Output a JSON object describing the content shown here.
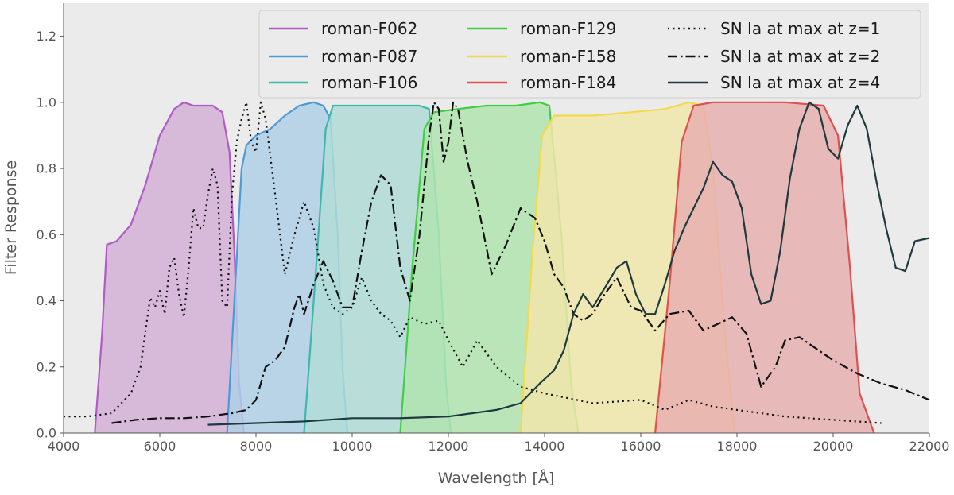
{
  "chart_data": {
    "type": "area",
    "xlabel": "Wavelength [Å]",
    "ylabel": "Filter Response",
    "xlim": [
      4000,
      22000
    ],
    "ylim": [
      0,
      1.3
    ],
    "xticks": [
      4000,
      6000,
      8000,
      10000,
      12000,
      14000,
      16000,
      18000,
      20000,
      22000
    ],
    "yticks": [
      0.0,
      0.2,
      0.4,
      0.6,
      0.8,
      1.0,
      1.2
    ],
    "ytick_labels": [
      "0.0",
      "0.2",
      "0.4",
      "0.6",
      "0.8",
      "1.0",
      "1.2"
    ],
    "grid": false,
    "background": "#ebebeb",
    "legend_position": "top-right",
    "filters": [
      {
        "name": "roman-F062",
        "color": "#b05cc4",
        "fill": "#d4b0d6",
        "x": [
          4650,
          4800,
          4900,
          5100,
          5400,
          5700,
          6000,
          6300,
          6500,
          6700,
          6900,
          7100,
          7300,
          7450,
          7550,
          7650,
          7750
        ],
        "y": [
          0,
          0.3,
          0.57,
          0.58,
          0.63,
          0.75,
          0.9,
          0.98,
          1.0,
          0.99,
          0.99,
          0.99,
          0.97,
          0.85,
          0.55,
          0.15,
          0
        ]
      },
      {
        "name": "roman-F087",
        "color": "#4d9bd6",
        "fill": "#b0cfe6",
        "x": [
          7400,
          7550,
          7700,
          7800,
          8000,
          8300,
          8600,
          8900,
          9200,
          9400,
          9550,
          9700,
          9800,
          9900
        ],
        "y": [
          0,
          0.4,
          0.8,
          0.87,
          0.9,
          0.92,
          0.96,
          0.99,
          1.0,
          0.99,
          0.95,
          0.6,
          0.2,
          0
        ]
      },
      {
        "name": "roman-F106",
        "color": "#3db8aa",
        "fill": "#b0dcd6",
        "x": [
          9000,
          9250,
          9450,
          9600,
          10000,
          10500,
          11000,
          11400,
          11600,
          11800,
          11950,
          12050
        ],
        "y": [
          0,
          0.5,
          0.92,
          0.99,
          0.99,
          0.99,
          0.99,
          0.99,
          0.98,
          0.6,
          0.15,
          0
        ]
      },
      {
        "name": "roman-F129",
        "color": "#44cc44",
        "fill": "#b0e4b0",
        "x": [
          11000,
          11250,
          11500,
          11700,
          12200,
          12800,
          13400,
          13900,
          14100,
          14350,
          14550,
          14700
        ],
        "y": [
          0,
          0.5,
          0.92,
          0.97,
          0.98,
          0.99,
          0.99,
          1.0,
          0.99,
          0.6,
          0.15,
          0
        ]
      },
      {
        "name": "roman-F158",
        "color": "#f2d94e",
        "fill": "#f0e6aa",
        "x": [
          13500,
          13750,
          13950,
          14200,
          15000,
          15800,
          16500,
          17000,
          17300,
          17500,
          17750,
          17950
        ],
        "y": [
          0,
          0.55,
          0.9,
          0.96,
          0.96,
          0.97,
          0.98,
          1.0,
          0.99,
          0.8,
          0.3,
          0
        ]
      },
      {
        "name": "roman-F184",
        "color": "#e05050",
        "fill": "#e8b0b0",
        "x": [
          16300,
          16600,
          16850,
          17100,
          17500,
          18200,
          19000,
          19800,
          20100,
          20350,
          20550,
          20850
        ],
        "y": [
          0,
          0.45,
          0.88,
          0.99,
          1.0,
          1.0,
          1.0,
          0.99,
          0.9,
          0.5,
          0.12,
          0
        ]
      }
    ],
    "spectra": [
      {
        "name": "SN Ia at max at z=1",
        "style": "dotted",
        "color": "#111111",
        "x": [
          4000,
          4500,
          5000,
          5400,
          5600,
          5800,
          5900,
          6000,
          6100,
          6200,
          6300,
          6400,
          6500,
          6600,
          6700,
          6800,
          6900,
          7000,
          7100,
          7200,
          7300,
          7400,
          7500,
          7600,
          7700,
          7800,
          7900,
          8000,
          8100,
          8200,
          8400,
          8600,
          8800,
          9000,
          9200,
          9400,
          9600,
          9800,
          10000,
          10200,
          10400,
          10600,
          10800,
          11000,
          11200,
          11500,
          11800,
          12000,
          12300,
          12600,
          13000,
          13500,
          14000,
          15000,
          16000,
          16500,
          17000,
          17500,
          18000,
          19000,
          20000,
          21000
        ],
        "y": [
          0.05,
          0.05,
          0.06,
          0.12,
          0.2,
          0.41,
          0.38,
          0.43,
          0.36,
          0.5,
          0.53,
          0.42,
          0.35,
          0.5,
          0.68,
          0.62,
          0.62,
          0.72,
          0.8,
          0.75,
          0.4,
          0.38,
          0.72,
          0.88,
          0.95,
          1.0,
          0.88,
          0.85,
          1.0,
          0.95,
          0.72,
          0.48,
          0.6,
          0.7,
          0.62,
          0.45,
          0.38,
          0.36,
          0.38,
          0.47,
          0.4,
          0.36,
          0.34,
          0.29,
          0.35,
          0.33,
          0.34,
          0.28,
          0.2,
          0.28,
          0.2,
          0.14,
          0.12,
          0.09,
          0.1,
          0.07,
          0.1,
          0.08,
          0.07,
          0.05,
          0.04,
          0.03
        ]
      },
      {
        "name": "SN Ia at max at z=2",
        "style": "dashdot",
        "color": "#111111",
        "x": [
          5000,
          5500,
          6000,
          6500,
          7000,
          7500,
          7800,
          8000,
          8200,
          8400,
          8600,
          8800,
          8900,
          9000,
          9200,
          9400,
          9600,
          9800,
          10000,
          10200,
          10400,
          10600,
          10800,
          11000,
          11200,
          11400,
          11600,
          11700,
          11800,
          11900,
          12000,
          12100,
          12200,
          12400,
          12600,
          12900,
          13200,
          13500,
          13800,
          14000,
          14200,
          14400,
          14600,
          14800,
          15000,
          15200,
          15500,
          15800,
          16000,
          16300,
          16600,
          17000,
          17300,
          17600,
          17900,
          18200,
          18500,
          18800,
          19000,
          19300,
          19600,
          20000,
          20500,
          21000,
          21500,
          22000
        ],
        "y": [
          0.03,
          0.04,
          0.045,
          0.045,
          0.05,
          0.06,
          0.07,
          0.1,
          0.2,
          0.22,
          0.26,
          0.38,
          0.42,
          0.36,
          0.45,
          0.52,
          0.46,
          0.38,
          0.38,
          0.55,
          0.7,
          0.78,
          0.75,
          0.5,
          0.4,
          0.6,
          0.9,
          1.0,
          0.98,
          0.82,
          0.88,
          1.0,
          0.98,
          0.82,
          0.7,
          0.48,
          0.57,
          0.68,
          0.65,
          0.58,
          0.48,
          0.44,
          0.36,
          0.34,
          0.36,
          0.41,
          0.47,
          0.38,
          0.37,
          0.31,
          0.36,
          0.37,
          0.31,
          0.33,
          0.35,
          0.3,
          0.14,
          0.2,
          0.28,
          0.29,
          0.26,
          0.22,
          0.18,
          0.15,
          0.13,
          0.1
        ]
      },
      {
        "name": "SN Ia at max at z=4",
        "style": "solid",
        "color": "#1e3a3e",
        "x": [
          7000,
          8000,
          9000,
          10000,
          11000,
          12000,
          13000,
          13500,
          13900,
          14200,
          14400,
          14600,
          14800,
          15000,
          15300,
          15500,
          15700,
          15900,
          16100,
          16300,
          16500,
          16700,
          16900,
          17100,
          17300,
          17500,
          17700,
          17900,
          18100,
          18300,
          18500,
          18700,
          18900,
          19100,
          19300,
          19500,
          19700,
          19900,
          20100,
          20300,
          20500,
          20700,
          20900,
          21100,
          21300,
          21500,
          21700,
          22000
        ],
        "y": [
          0.025,
          0.03,
          0.035,
          0.045,
          0.045,
          0.05,
          0.07,
          0.09,
          0.15,
          0.19,
          0.25,
          0.36,
          0.42,
          0.38,
          0.45,
          0.5,
          0.52,
          0.42,
          0.36,
          0.36,
          0.45,
          0.55,
          0.62,
          0.68,
          0.74,
          0.82,
          0.78,
          0.76,
          0.68,
          0.48,
          0.39,
          0.4,
          0.55,
          0.77,
          0.92,
          1.0,
          0.98,
          0.86,
          0.83,
          0.93,
          0.99,
          0.92,
          0.76,
          0.62,
          0.5,
          0.49,
          0.58,
          0.59
        ]
      }
    ],
    "legend": {
      "columns": [
        [
          "roman-F062",
          "roman-F087",
          "roman-F106"
        ],
        [
          "roman-F129",
          "roman-F158",
          "roman-F184"
        ],
        [
          "SN Ia at max at z=1",
          "SN Ia at max at z=2",
          "SN Ia at max at z=4"
        ]
      ]
    }
  }
}
